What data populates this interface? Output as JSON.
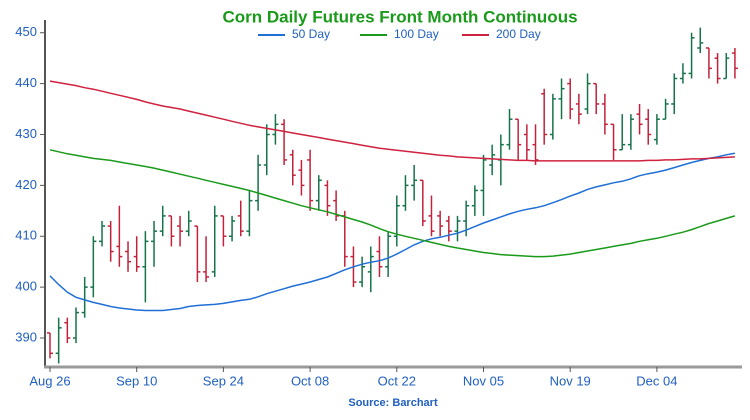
{
  "chart_data": {
    "type": "ohlc",
    "title": "Corn Daily Futures Front Month Continuous",
    "source": "Source: Barchart",
    "categories": [
      "Aug 26",
      null,
      null,
      null,
      null,
      null,
      null,
      null,
      null,
      null,
      "Sep 10",
      null,
      null,
      null,
      null,
      null,
      null,
      null,
      null,
      null,
      "Sep 24",
      null,
      null,
      null,
      null,
      null,
      null,
      null,
      null,
      null,
      "Oct 08",
      null,
      null,
      null,
      null,
      null,
      null,
      null,
      null,
      null,
      "Oct 22",
      null,
      null,
      null,
      null,
      null,
      null,
      null,
      null,
      null,
      "Nov 05",
      null,
      null,
      null,
      null,
      null,
      null,
      null,
      null,
      null,
      "Nov 19",
      null,
      null,
      null,
      null,
      null,
      null,
      null,
      null,
      null,
      "Dec 04",
      null,
      null,
      null,
      null,
      null,
      null,
      null,
      null,
      null
    ],
    "open": [
      391,
      387,
      393,
      390,
      395,
      400,
      409,
      412,
      408,
      407,
      406,
      404,
      409,
      411,
      414,
      412,
      411,
      412,
      403,
      403,
      414,
      410,
      414,
      411,
      417,
      424,
      430,
      432,
      426,
      423,
      425,
      417,
      420,
      417,
      414,
      406,
      401,
      403,
      407,
      404,
      410,
      416,
      420,
      421,
      414,
      414,
      413,
      411,
      413,
      416,
      419,
      424,
      425,
      428,
      433,
      430,
      428,
      438,
      430,
      437,
      440,
      436,
      435,
      440,
      436,
      432,
      427,
      428,
      434,
      433,
      429,
      433,
      436,
      441,
      442,
      447,
      447,
      445,
      441,
      446
    ],
    "high": [
      391,
      394,
      394,
      396,
      402,
      410,
      413,
      413,
      416,
      409,
      410,
      411,
      413,
      416,
      414,
      414,
      415,
      412,
      410,
      416,
      414,
      414,
      417,
      419,
      426,
      432,
      434,
      433,
      427,
      425,
      427,
      422,
      421,
      419,
      415,
      408,
      406,
      408,
      410,
      411,
      418,
      422,
      424,
      421,
      418,
      415,
      414,
      414,
      417,
      420,
      426,
      428,
      430,
      435,
      433,
      432,
      432,
      439,
      438,
      441,
      441,
      438,
      442,
      440,
      438,
      432,
      434,
      434,
      436,
      435,
      434,
      437,
      442,
      444,
      450,
      451,
      447,
      446,
      446,
      447
    ],
    "low": [
      386,
      385,
      389,
      389,
      394,
      398,
      408,
      405,
      404,
      403,
      403,
      397,
      404,
      410,
      408,
      408,
      410,
      401,
      401,
      402,
      408,
      409,
      410,
      410,
      415,
      422,
      428,
      424,
      420,
      418,
      415,
      415,
      414,
      413,
      404,
      400,
      400,
      399,
      402,
      402,
      408,
      415,
      417,
      412,
      410,
      410,
      409,
      409,
      410,
      414,
      414,
      422,
      420,
      427,
      425,
      425,
      424,
      428,
      429,
      433,
      433,
      432,
      434,
      434,
      430,
      425,
      427,
      427,
      430,
      428,
      428,
      433,
      434,
      440,
      441,
      446,
      441,
      440,
      441,
      441
    ],
    "close": [
      387,
      392,
      390,
      395,
      400,
      409,
      412,
      407,
      406,
      405,
      404,
      409,
      411,
      414,
      410,
      411,
      413,
      403,
      402,
      414,
      410,
      413,
      411,
      417,
      424,
      430,
      432,
      425,
      422,
      420,
      417,
      421,
      416,
      414,
      406,
      401,
      404,
      406,
      404,
      410,
      416,
      420,
      421,
      413,
      411,
      412,
      411,
      413,
      416,
      419,
      425,
      426,
      428,
      433,
      428,
      427,
      425,
      430,
      437,
      439,
      435,
      434,
      440,
      436,
      432,
      427,
      428,
      433,
      432,
      430,
      433,
      436,
      441,
      442,
      449,
      448,
      443,
      441,
      445,
      443
    ],
    "up_color": "#17734a",
    "down_color": "#c2223b",
    "series": [
      {
        "name": "50 Day",
        "color": "#1f6fd6",
        "values": [
          402.2,
          400.5,
          399,
          398,
          397.5,
          397,
          396.6,
          396.2,
          395.9,
          395.7,
          395.5,
          395.4,
          395.4,
          395.4,
          395.6,
          395.8,
          396.2,
          396.4,
          396.5,
          396.6,
          396.8,
          397.1,
          397.4,
          397.6,
          398.1,
          398.7,
          399.2,
          399.7,
          400.2,
          400.6,
          401.0,
          401.5,
          402.0,
          402.7,
          403.4,
          404.0,
          404.5,
          404.9,
          405.2,
          405.7,
          406.5,
          407.4,
          408.3,
          409.0,
          409.5,
          409.8,
          410.2,
          410.6,
          411.2,
          411.9,
          412.6,
          413.2,
          413.8,
          414.4,
          414.9,
          415.3,
          415.6,
          416.0,
          416.6,
          417.2,
          417.9,
          418.5,
          419.2,
          419.7,
          420.1,
          420.5,
          420.8,
          421.3,
          421.9,
          422.3,
          422.6,
          423.0,
          423.5,
          424.0,
          424.5,
          424.9,
          425.3,
          425.6,
          426.0,
          426.3
        ]
      },
      {
        "name": "100 Day",
        "color": "#1a9a1a",
        "values": [
          427.0,
          426.6,
          426.2,
          425.9,
          425.6,
          425.3,
          425.1,
          424.9,
          424.6,
          424.3,
          424.0,
          423.7,
          423.4,
          423.0,
          422.6,
          422.2,
          421.8,
          421.4,
          421.0,
          420.6,
          420.2,
          419.8,
          419.4,
          419.0,
          418.5,
          418.0,
          417.5,
          417.0,
          416.5,
          416.0,
          415.6,
          415.2,
          414.8,
          414.3,
          413.8,
          413.3,
          412.8,
          412.2,
          411.5,
          410.9,
          410.4,
          410.0,
          409.6,
          409.2,
          408.8,
          408.4,
          408.0,
          407.7,
          407.4,
          407.1,
          406.8,
          406.6,
          406.4,
          406.3,
          406.2,
          406.1,
          406.0,
          406.0,
          406.1,
          406.3,
          406.5,
          406.8,
          407.1,
          407.4,
          407.7,
          408.0,
          408.3,
          408.6,
          409.0,
          409.3,
          409.6,
          410.0,
          410.4,
          410.8,
          411.3,
          411.9,
          412.5,
          413.0,
          413.5,
          414.0
        ]
      },
      {
        "name": "200 Day",
        "color": "#d0213f",
        "values": [
          440.5,
          440.2,
          439.9,
          439.6,
          439.2,
          438.9,
          438.5,
          438.1,
          437.7,
          437.3,
          436.9,
          436.4,
          436.0,
          435.6,
          435.3,
          435.0,
          434.6,
          434.2,
          433.8,
          433.4,
          433.0,
          432.6,
          432.2,
          431.8,
          431.5,
          431.2,
          430.9,
          430.6,
          430.3,
          430.0,
          429.7,
          429.4,
          429.1,
          428.8,
          428.5,
          428.2,
          427.9,
          427.6,
          427.3,
          427.1,
          426.9,
          426.7,
          426.5,
          426.3,
          426.1,
          425.9,
          425.8,
          425.6,
          425.5,
          425.4,
          425.3,
          425.2,
          425.1,
          425.0,
          424.9,
          424.9,
          424.8,
          424.8,
          424.8,
          424.8,
          424.8,
          424.8,
          424.8,
          424.8,
          424.8,
          424.8,
          424.8,
          424.8,
          424.8,
          424.9,
          424.9,
          425.0,
          425.0,
          425.1,
          425.2,
          425.2,
          425.3,
          425.4,
          425.5,
          425.6
        ]
      }
    ],
    "ylim": [
      384.5,
      452.5
    ],
    "yticks": [
      390,
      400,
      410,
      420,
      430,
      440,
      450
    ],
    "legend": "top"
  }
}
